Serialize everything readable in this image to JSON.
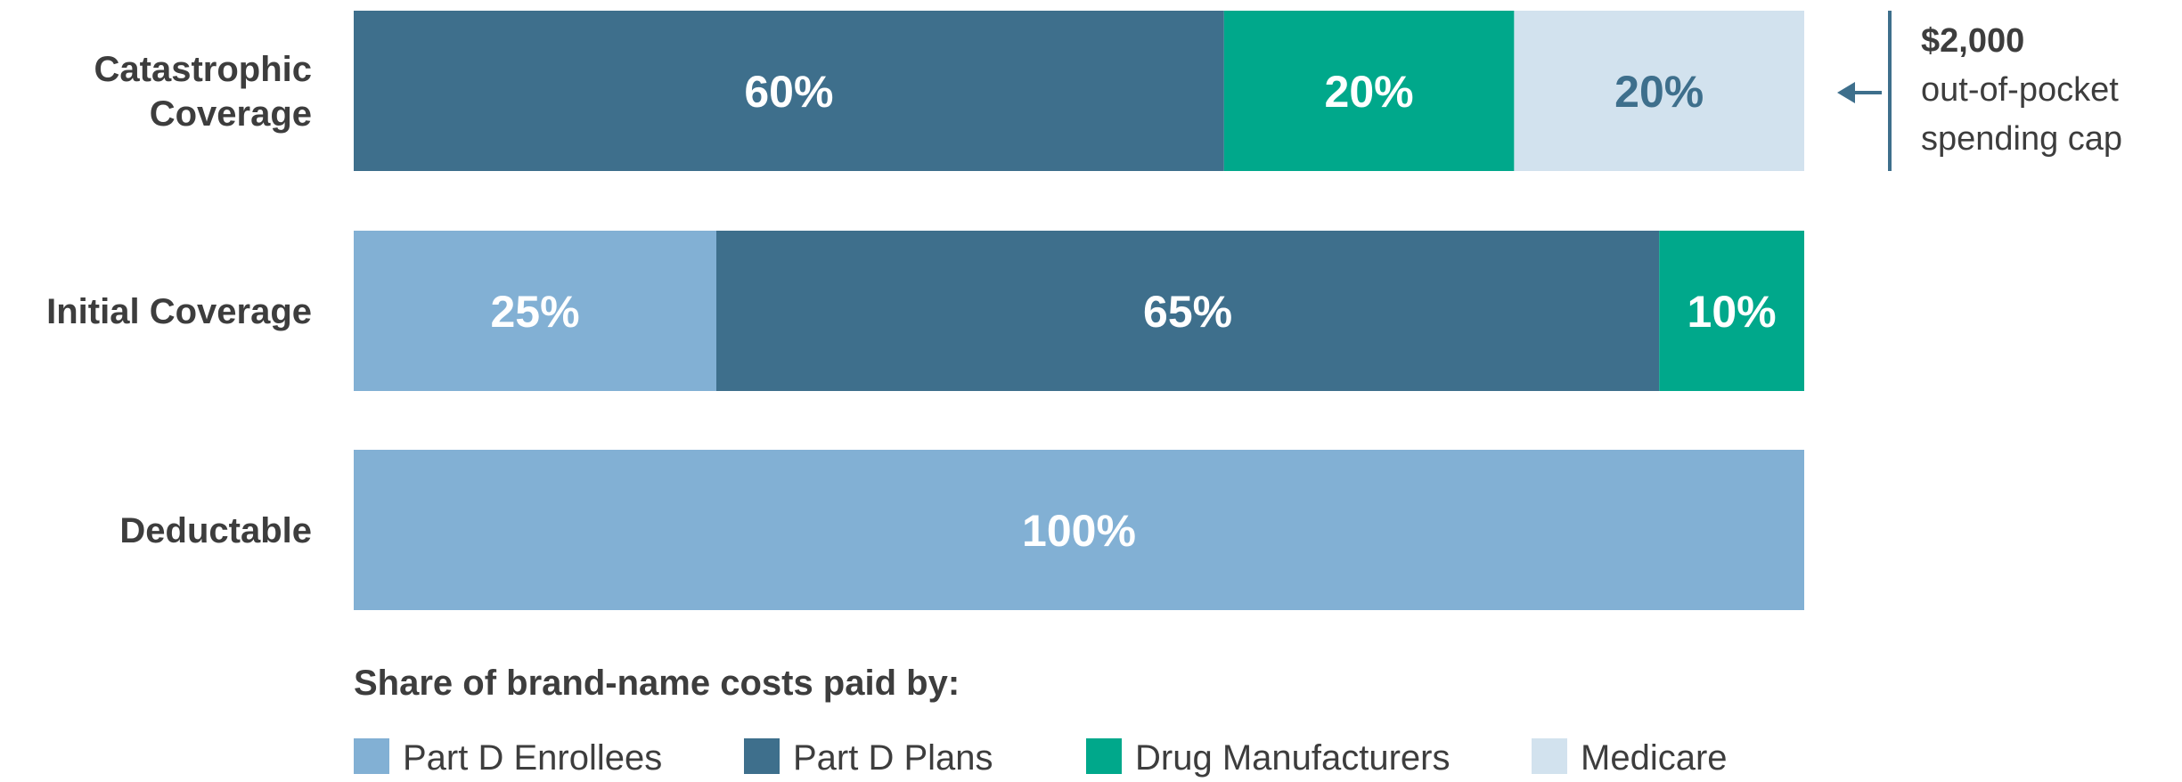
{
  "chart_data": {
    "type": "bar",
    "orientation": "horizontal",
    "stacked": true,
    "categories": [
      "Catastrophic Coverage",
      "Initial Coverage",
      "Deductable"
    ],
    "category_lines": [
      [
        "Catastrophic",
        "Coverage"
      ],
      [
        "Initial Coverage"
      ],
      [
        "Deductable"
      ]
    ],
    "series": [
      {
        "name": "Part D Enrollees",
        "color": "#82b0d4",
        "label_color": "#ffffff",
        "values": [
          0,
          25,
          100
        ]
      },
      {
        "name": "Part D Plans",
        "color": "#3e6f8c",
        "label_color": "#ffffff",
        "values": [
          60,
          65,
          0
        ]
      },
      {
        "name": "Drug Manufacturers",
        "color": "#00a88b",
        "label_color": "#ffffff",
        "values": [
          20,
          10,
          0
        ]
      },
      {
        "name": "Medicare",
        "color": "#d2e2ee",
        "label_color": "#3e6f8c",
        "values": [
          20,
          0,
          0
        ]
      }
    ],
    "xlim": [
      0,
      100
    ],
    "value_suffix": "%",
    "grid": false,
    "legend_title": "Share of brand-name costs paid by:",
    "legend_position": "bottom",
    "annotation": {
      "category": "Catastrophic Coverage",
      "lines": [
        "$2,000",
        "out-of-pocket",
        "spending cap"
      ],
      "color": "#3e6f8c"
    }
  }
}
